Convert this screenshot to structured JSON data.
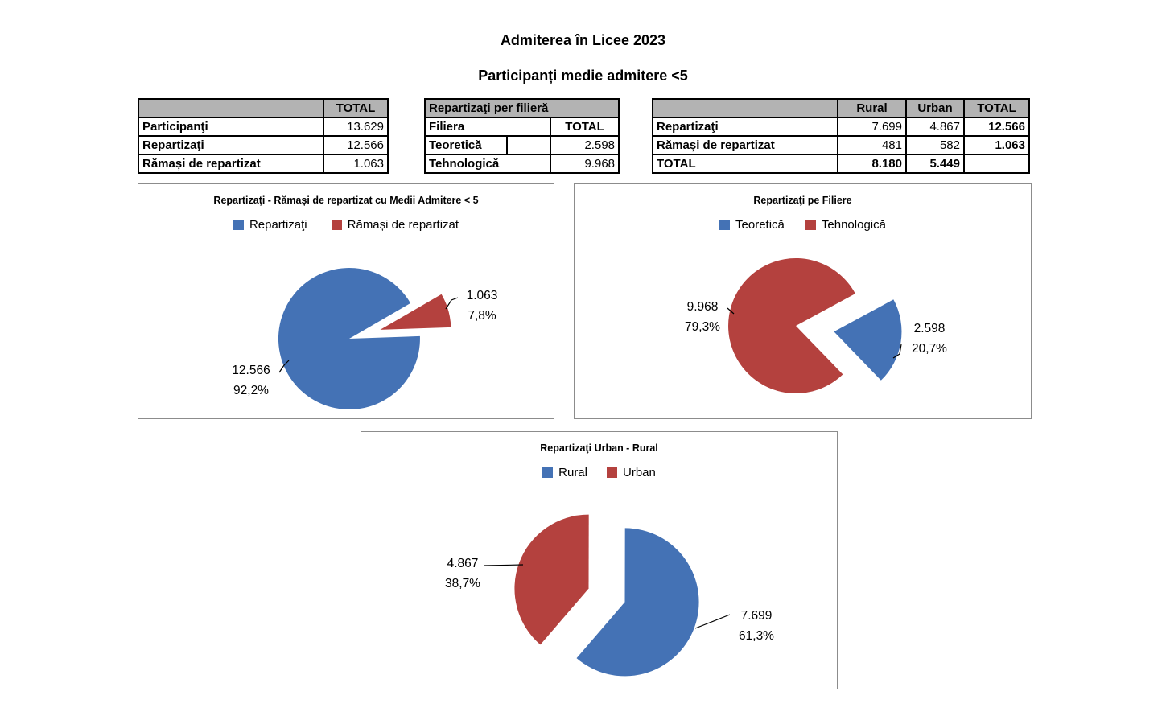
{
  "page": {
    "title": "Admiterea în Licee 2023",
    "subtitle": "Participanți medie admitere <5"
  },
  "tables": {
    "totals": {
      "corner": "",
      "total_header": "TOTAL",
      "rows": [
        [
          "Participanţi",
          "13.629"
        ],
        [
          "Repartizaţi",
          "12.566"
        ],
        [
          "Rămași de repartizat",
          "1.063"
        ]
      ]
    },
    "filiera": {
      "title": "Repartizaţi per filieră",
      "col1": "Filiera",
      "col2": "TOTAL",
      "rows": [
        [
          "Teoretică",
          "2.598"
        ],
        [
          "Tehnologică",
          "9.968"
        ]
      ]
    },
    "rural_urban": {
      "corner": "",
      "cols": [
        "Rural",
        "Urban",
        "TOTAL"
      ],
      "rows": [
        [
          "Repartizaţi",
          "7.699",
          "4.867",
          "12.566"
        ],
        [
          "Rămași de repartizat",
          "481",
          "582",
          "1.063"
        ],
        [
          "TOTAL",
          "8.180",
          "5.449",
          ""
        ]
      ]
    }
  },
  "chart_data": [
    {
      "type": "pie",
      "title": "Repartizaţi - Rămași de repartizat cu Medii Admitere < 5",
      "legend_position": "top",
      "slices": [
        {
          "label": "Repartizaţi",
          "value": 12566,
          "display": "12.566",
          "pct": "92,2%",
          "color": "#4472B5"
        },
        {
          "label": "Rămași de repartizat",
          "value": 1063,
          "display": "1.063",
          "pct": "7,8%",
          "color": "#B4413E"
        }
      ]
    },
    {
      "type": "pie",
      "title": "Repartizaţi pe Filiere",
      "legend_position": "top",
      "slices": [
        {
          "label": "Teoretică",
          "value": 2598,
          "display": "2.598",
          "pct": "20,7%",
          "color": "#4472B5"
        },
        {
          "label": "Tehnologică",
          "value": 9968,
          "display": "9.968",
          "pct": "79,3%",
          "color": "#B4413E"
        }
      ]
    },
    {
      "type": "pie",
      "title": "Repartizaţi Urban - Rural",
      "legend_position": "top",
      "slices": [
        {
          "label": "Rural",
          "value": 7699,
          "display": "7.699",
          "pct": "61,3%",
          "color": "#4472B5"
        },
        {
          "label": "Urban",
          "value": 4867,
          "display": "4.867",
          "pct": "38,7%",
          "color": "#B4413E"
        }
      ]
    }
  ],
  "colors": {
    "series_blue": "#4472B5",
    "series_red": "#B4413E",
    "table_header_bg": "#B3B3B3"
  }
}
